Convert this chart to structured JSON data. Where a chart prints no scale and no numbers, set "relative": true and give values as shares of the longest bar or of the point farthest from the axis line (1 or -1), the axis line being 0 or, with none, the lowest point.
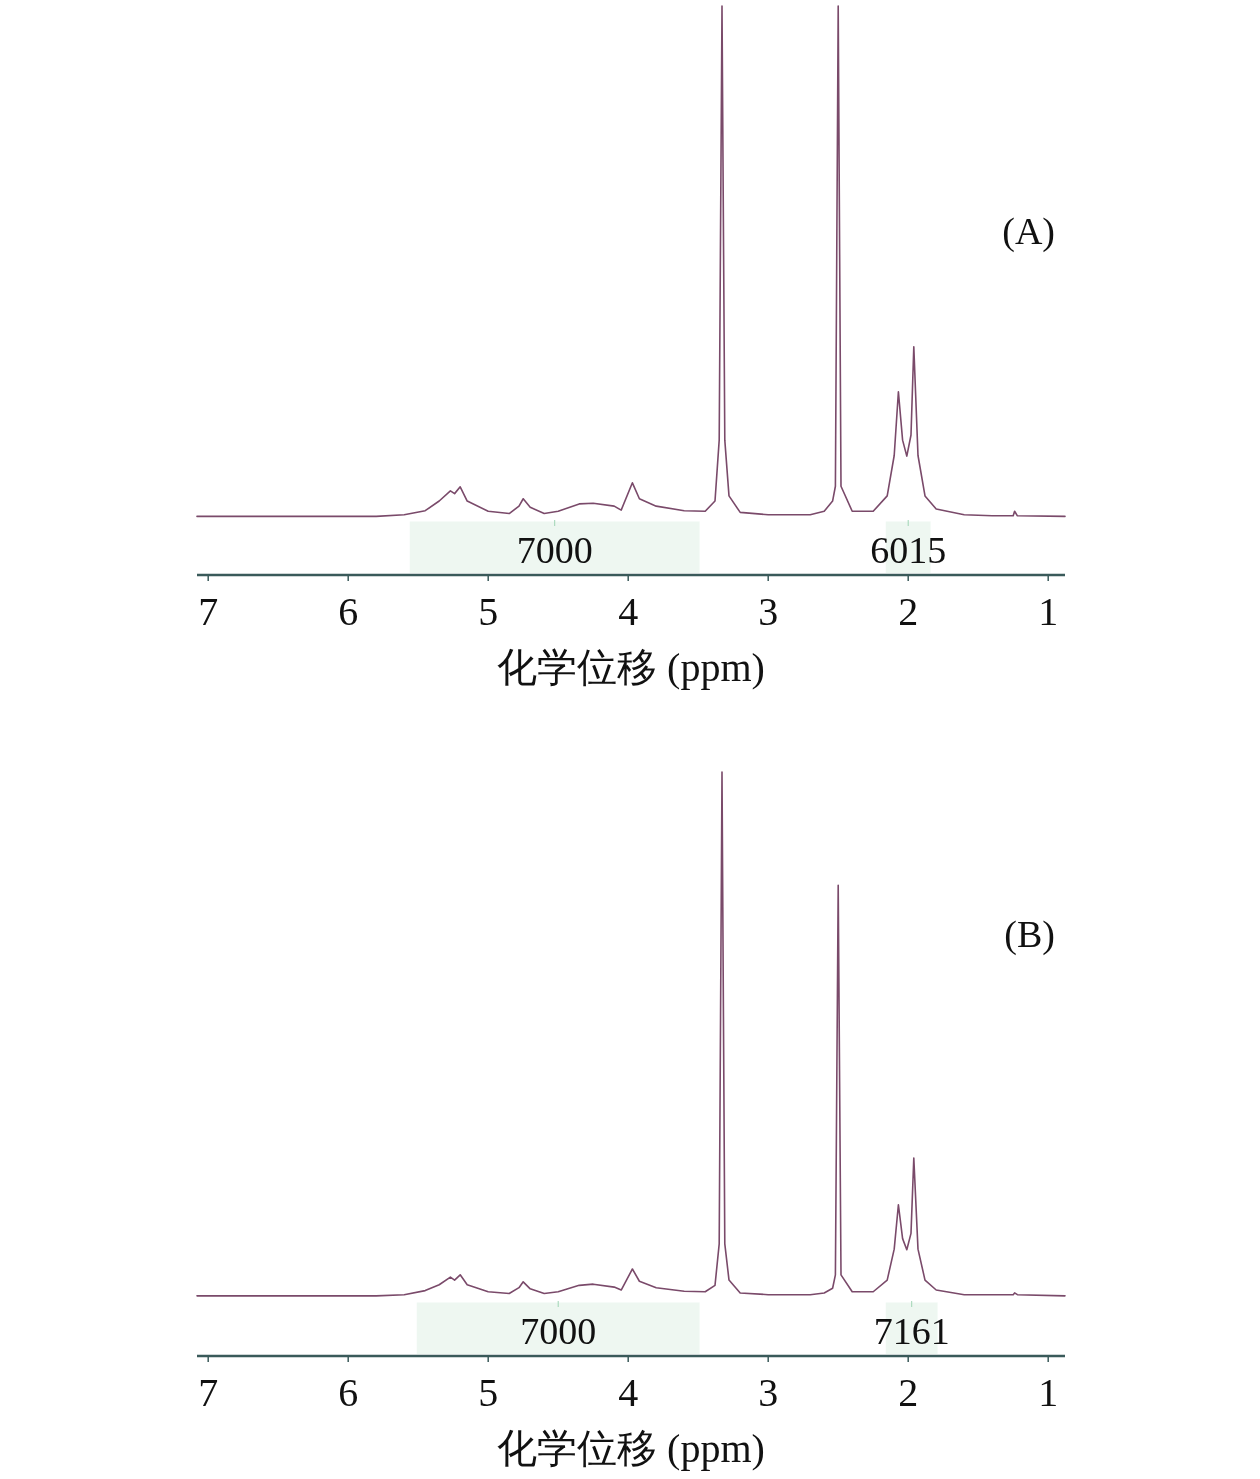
{
  "chart_data": [
    {
      "type": "line",
      "title": "(A)",
      "xlabel": "化学位移 (ppm)",
      "relative": true,
      "xlim": [
        7.08,
        0.88
      ],
      "xticks": [
        7,
        6,
        5,
        4,
        3,
        2,
        1
      ],
      "marker": "none",
      "line_style": "solid",
      "series": [
        {
          "color": "#7a4a6a",
          "x": [
            7.08,
            5.8,
            5.6,
            5.45,
            5.35,
            5.27,
            5.24,
            5.2,
            5.15,
            5.0,
            4.85,
            4.78,
            4.75,
            4.7,
            4.6,
            4.5,
            4.35,
            4.25,
            4.1,
            4.05,
            3.97,
            3.92,
            3.8,
            3.6,
            3.45,
            3.38,
            3.35,
            3.33,
            3.31,
            3.28,
            3.2,
            3.0,
            2.7,
            2.6,
            2.54,
            2.52,
            2.5,
            2.48,
            2.4,
            2.25,
            2.15,
            2.1,
            2.07,
            2.04,
            2.01,
            1.98,
            1.96,
            1.93,
            1.88,
            1.8,
            1.6,
            1.4,
            1.25,
            1.24,
            1.22,
            0.88
          ],
          "values": [
            0.103,
            0.103,
            0.106,
            0.113,
            0.13,
            0.148,
            0.143,
            0.155,
            0.13,
            0.112,
            0.108,
            0.121,
            0.134,
            0.119,
            0.108,
            0.112,
            0.125,
            0.126,
            0.121,
            0.114,
            0.162,
            0.134,
            0.121,
            0.113,
            0.112,
            0.13,
            0.237,
            1,
            0.237,
            0.139,
            0.11,
            0.106,
            0.106,
            0.112,
            0.13,
            0.156,
            1,
            0.156,
            0.112,
            0.112,
            0.139,
            0.21,
            0.322,
            0.237,
            0.209,
            0.246,
            0.401,
            0.21,
            0.139,
            0.116,
            0.106,
            0.104,
            0.104,
            0.112,
            0.104,
            0.103
          ]
        }
      ],
      "bands": [
        {
          "axis": "x",
          "from": 5.56,
          "to": 3.49,
          "label": "7000",
          "color": "#9fd4b4"
        },
        {
          "axis": "x",
          "from": 2.16,
          "to": 1.84,
          "label": "6015",
          "color": "#9fd4b4"
        }
      ]
    },
    {
      "type": "line",
      "title": "(B)",
      "xlabel": "化学位移 (ppm)",
      "relative": true,
      "xlim": [
        7.08,
        0.88
      ],
      "xticks": [
        7,
        6,
        5,
        4,
        3,
        2,
        1
      ],
      "marker": "none",
      "line_style": "solid",
      "series": [
        {
          "color": "#7a4a6a",
          "x": [
            7.08,
            5.8,
            5.6,
            5.45,
            5.35,
            5.27,
            5.24,
            5.2,
            5.15,
            5.0,
            4.85,
            4.78,
            4.75,
            4.7,
            4.6,
            4.5,
            4.35,
            4.25,
            4.1,
            4.05,
            3.97,
            3.92,
            3.8,
            3.6,
            3.45,
            3.38,
            3.35,
            3.33,
            3.31,
            3.28,
            3.2,
            3.0,
            2.7,
            2.6,
            2.54,
            2.52,
            2.5,
            2.48,
            2.4,
            2.25,
            2.15,
            2.1,
            2.07,
            2.04,
            2.01,
            1.98,
            1.96,
            1.93,
            1.88,
            1.8,
            1.6,
            1.4,
            1.25,
            1.24,
            1.22,
            0.88
          ],
          "values": [
            0.103,
            0.103,
            0.105,
            0.112,
            0.122,
            0.135,
            0.13,
            0.139,
            0.122,
            0.11,
            0.107,
            0.117,
            0.127,
            0.115,
            0.107,
            0.11,
            0.121,
            0.123,
            0.118,
            0.113,
            0.149,
            0.128,
            0.117,
            0.111,
            0.11,
            0.121,
            0.192,
            1,
            0.192,
            0.13,
            0.108,
            0.105,
            0.105,
            0.108,
            0.116,
            0.139,
            0.806,
            0.139,
            0.11,
            0.11,
            0.13,
            0.183,
            0.259,
            0.201,
            0.182,
            0.21,
            0.339,
            0.183,
            0.13,
            0.113,
            0.105,
            0.105,
            0.105,
            0.108,
            0.105,
            0.103
          ]
        }
      ],
      "bands": [
        {
          "axis": "x",
          "from": 5.51,
          "to": 3.49,
          "label": "7000",
          "color": "#9fd4b4"
        },
        {
          "axis": "x",
          "from": 2.16,
          "to": 1.79,
          "label": "7161",
          "color": "#9fd4b4"
        }
      ]
    }
  ]
}
